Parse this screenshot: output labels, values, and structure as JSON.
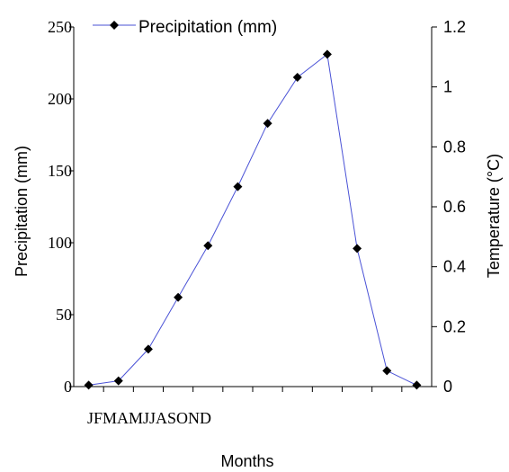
{
  "chart_data": {
    "type": "line",
    "categories_label": "JFMAMJJASOND",
    "categories": [
      "J",
      "F",
      "M",
      "A",
      "M",
      "J",
      "J",
      "A",
      "S",
      "O",
      "N",
      "D"
    ],
    "xlabel": "Months",
    "ylabel": "Precipitation (mm)",
    "y2label": "Temperature (°C)",
    "ylim": [
      0,
      250
    ],
    "y2lim": [
      0,
      1.2
    ],
    "yticks": [
      0,
      50,
      100,
      150,
      200,
      250
    ],
    "y2ticks": [
      "0",
      "0.2",
      "0.4",
      "0.6",
      "0.8",
      "1",
      "1.2"
    ],
    "legend_position": "top",
    "series": [
      {
        "name": "Precipitation (mm)",
        "axis": "left",
        "color": "#4A52D6",
        "marker": "diamond",
        "marker_color": "#000000",
        "values": [
          1,
          4,
          26,
          62,
          98,
          139,
          183,
          215,
          231,
          96,
          11,
          1
        ]
      }
    ]
  }
}
